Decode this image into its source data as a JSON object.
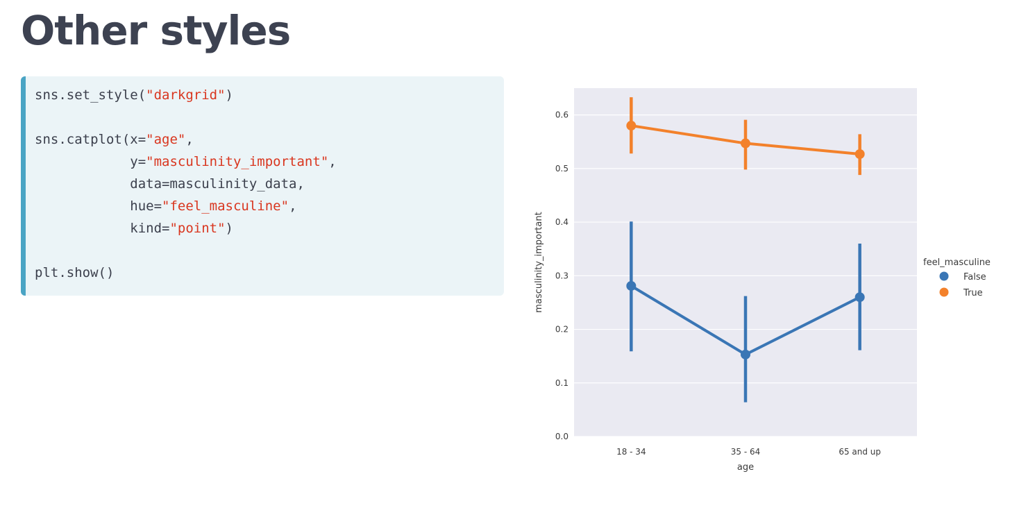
{
  "slide": {
    "title": "Other styles"
  },
  "code": {
    "lines": [
      [
        {
          "t": "sns.set_style("
        },
        {
          "t": "\"darkgrid\"",
          "s": true
        },
        {
          "t": ")"
        }
      ],
      [],
      [
        {
          "t": "sns.catplot(x="
        },
        {
          "t": "\"age\"",
          "s": true
        },
        {
          "t": ","
        }
      ],
      [
        {
          "t": "            y="
        },
        {
          "t": "\"masculinity_important\"",
          "s": true
        },
        {
          "t": ","
        }
      ],
      [
        {
          "t": "            data=masculinity_data,"
        }
      ],
      [
        {
          "t": "            hue="
        },
        {
          "t": "\"feel_masculine\"",
          "s": true
        },
        {
          "t": ","
        }
      ],
      [
        {
          "t": "            kind="
        },
        {
          "t": "\"point\"",
          "s": true
        },
        {
          "t": ")"
        }
      ],
      [],
      [
        {
          "t": "plt.show()"
        }
      ]
    ]
  },
  "chart_data": {
    "type": "line",
    "style": "darkgrid",
    "categories": [
      "18 - 34",
      "35 - 64",
      "65 and up"
    ],
    "xlabel": "age",
    "ylabel": "masculinity_important",
    "ylim": [
      0.0,
      0.65
    ],
    "yticks": [
      "0.0",
      "0.1",
      "0.2",
      "0.3",
      "0.4",
      "0.5",
      "0.6"
    ],
    "grid": true,
    "legend": {
      "title": "feel_masculine",
      "placement": "right"
    },
    "series": [
      {
        "name": "False",
        "color": "#3a76b5",
        "values": [
          0.281,
          0.153,
          0.26
        ],
        "ci_low": [
          0.159,
          0.064,
          0.161
        ],
        "ci_high": [
          0.401,
          0.262,
          0.36
        ]
      },
      {
        "name": "True",
        "color": "#f3812b",
        "values": [
          0.58,
          0.547,
          0.527
        ],
        "ci_low": [
          0.528,
          0.498,
          0.488
        ],
        "ci_high": [
          0.633,
          0.591,
          0.564
        ]
      }
    ],
    "plot_background": "#eaeaf2"
  }
}
